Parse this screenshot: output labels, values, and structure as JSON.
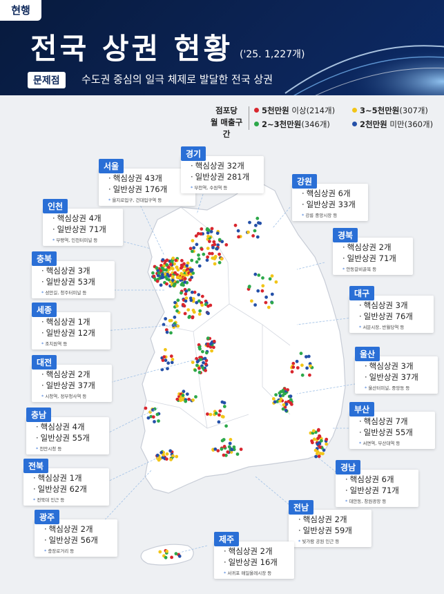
{
  "header": {
    "tag": "현행",
    "title": "전국 상권 현황",
    "title_note": "('25. 1,227개)",
    "problem_badge": "문제점",
    "problem_text": "수도권 중심의 일극 체제로 발달한 전국 상권"
  },
  "legend": {
    "title_line1": "점포당",
    "title_line2": "월 매출구간",
    "items": [
      {
        "label": "5천만원",
        "suffix": "이상(214개)",
        "color": "#d8262e"
      },
      {
        "label": "3~5천만원",
        "suffix": "(307개)",
        "color": "#f2c518"
      },
      {
        "label": "2~3천만원",
        "suffix": "(346개)",
        "color": "#2da84a"
      },
      {
        "label": "2천만원",
        "suffix": "미만(360개)",
        "color": "#2450a8"
      }
    ]
  },
  "regions": [
    {
      "name": "서울",
      "core": "핵심상권 43개",
      "general": "일반상권 176개",
      "note": "을지로입구, 건대입구역 등"
    },
    {
      "name": "경기",
      "core": "핵심상권 32개",
      "general": "일반상권 281개",
      "note": "부천역, 수원역 등"
    },
    {
      "name": "강원",
      "core": "핵심상권 6개",
      "general": "일반상권 33개",
      "note": "강릉 중앙시장 등"
    },
    {
      "name": "인천",
      "core": "핵심상권 4개",
      "general": "일반상권 71개",
      "note": "부평역, 인천터미널 등"
    },
    {
      "name": "경북",
      "core": "핵심상권 2개",
      "general": "일반상권 71개",
      "note": "안동갈비골목 등"
    },
    {
      "name": "충북",
      "core": "핵심상권 3개",
      "general": "일반상권 53개",
      "note": "성안길, 청주터미널 등"
    },
    {
      "name": "대구",
      "core": "핵심상권 3개",
      "general": "일반상권 76개",
      "note": "서문시장, 반월당역 등"
    },
    {
      "name": "세종",
      "core": "핵심상권 1개",
      "general": "일반상권 12개",
      "note": "조치원역 등"
    },
    {
      "name": "울산",
      "core": "핵심상권 3개",
      "general": "일반상권 37개",
      "note": "울산터미널, 중앙동 등"
    },
    {
      "name": "대전",
      "core": "핵심상권 2개",
      "general": "일반상권 37개",
      "note": "시청역, 정부청사역 등"
    },
    {
      "name": "부산",
      "core": "핵심상권 7개",
      "general": "일반상권 55개",
      "note": "서면역, 부산대역 등"
    },
    {
      "name": "충남",
      "core": "핵심상권 4개",
      "general": "일반상권 55개",
      "note": "천안시청 등"
    },
    {
      "name": "전북",
      "core": "핵심상권 1개",
      "general": "일반상권 62개",
      "note": "전북대 인근 등"
    },
    {
      "name": "경남",
      "core": "핵심상권 6개",
      "general": "일반상권 71개",
      "note": "대안동, 창원광장 등"
    },
    {
      "name": "전남",
      "core": "핵심상권 2개",
      "general": "일반상권 59개",
      "note": "빛가람 공원 인근 등"
    },
    {
      "name": "광주",
      "core": "핵심상권 2개",
      "general": "일반상권 56개",
      "note": "충장로거리 등"
    },
    {
      "name": "제주",
      "core": "핵심상권 2개",
      "general": "일반상권 16개",
      "note": "서귀포 매일올레시장 등"
    }
  ]
}
